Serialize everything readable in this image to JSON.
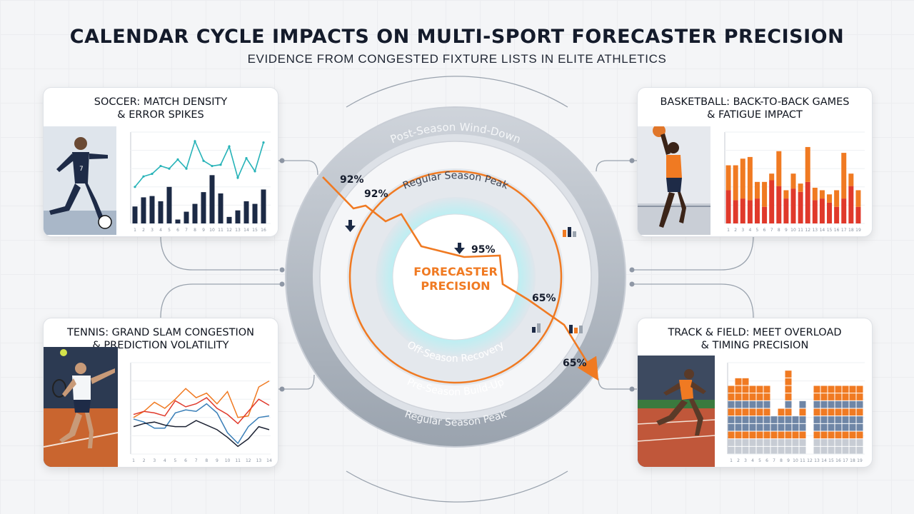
{
  "title": "CALENDAR CYCLE IMPACTS ON MULTI-SPORT FORECASTER PRECISION",
  "subtitle": "EVIDENCE FROM CONGESTED FIXTURE LISTS IN ELITE ATHLETICS",
  "center": {
    "line1": "FORECASTER",
    "line2": "PRECISION"
  },
  "rings": {
    "outer_top": "Post-Season Wind-Down",
    "mid_top": "Regular Season Peak",
    "inner_bottom": "Off-Season Recovery",
    "mid_bottom": "Pre-Season Build-Up",
    "outer_bottom": "Regular Season Peak"
  },
  "precision_labels": [
    "92%",
    "92%",
    "95%",
    "65%",
    "65%"
  ],
  "panels": {
    "soccer": {
      "title_line1": "SOCCER: MATCH DENSITY",
      "title_line2": "& ERROR SPIKES"
    },
    "basketball": {
      "title_line1": "BASKETBALL: BACK-TO-BACK GAMES",
      "title_line2": "& FATIGUE IMPACT"
    },
    "tennis": {
      "title_line1": "TENNIS: GRAND SLAM CONGESTION",
      "title_line2": "& PREDICTION VOLATILITY"
    },
    "track": {
      "title_line1": "TRACK & FIELD: MEET OVERLOAD",
      "title_line2": "& TIMING PRECISION"
    }
  },
  "colors": {
    "orange": "#f07a22",
    "navy": "#1c2a45",
    "teal": "#27b3b8",
    "red": "#e0392b",
    "slate": "#6f86a6",
    "gray_ring": "#b9bfc8"
  },
  "chart_data": [
    {
      "type": "bar",
      "panel": "soccer",
      "categories": [
        "1",
        "2",
        "3",
        "4",
        "5",
        "6",
        "7",
        "8",
        "9",
        "10",
        "11",
        "12",
        "13",
        "14",
        "15",
        "16"
      ],
      "series": [
        {
          "values": [
            13,
            20,
            21,
            17,
            28,
            3,
            9,
            15,
            24,
            37,
            23,
            5,
            10,
            17,
            15,
            26
          ]
        },
        {
          "values": [
            28,
            36,
            38,
            44,
            42,
            49,
            42,
            63,
            48,
            44,
            45,
            59,
            35,
            50,
            40,
            62
          ]
        }
      ],
      "ylim": [
        0,
        70
      ]
    },
    {
      "type": "bar",
      "panel": "basketball",
      "categories": [
        "1",
        "2",
        "3",
        "4",
        "5",
        "6",
        "7",
        "8",
        "9",
        "10",
        "11",
        "12",
        "13",
        "14",
        "15",
        "16",
        "17",
        "18",
        "19"
      ],
      "series": [
        {
          "values": [
            40,
            28,
            30,
            28,
            30,
            20,
            52,
            45,
            30,
            42,
            38,
            50,
            28,
            30,
            25,
            20,
            30,
            45,
            20
          ]
        },
        {
          "values": [
            30,
            42,
            48,
            52,
            20,
            30,
            8,
            42,
            10,
            18,
            10,
            42,
            15,
            10,
            10,
            20,
            55,
            15,
            20
          ]
        }
      ],
      "ylim": [
        0,
        110
      ]
    },
    {
      "type": "line",
      "panel": "tennis",
      "x": [
        "1",
        "2",
        "3",
        "4",
        "5",
        "6",
        "7",
        "8",
        "9",
        "10",
        "11",
        "12",
        "13",
        "14"
      ],
      "series": [
        {
          "values": [
            24,
            28,
            34,
            30,
            36,
            43,
            37,
            40,
            33,
            41,
            24,
            25,
            44,
            48
          ]
        },
        {
          "values": [
            26,
            28,
            27,
            25,
            35,
            31,
            33,
            37,
            30,
            26,
            20,
            28,
            36,
            32
          ]
        },
        {
          "values": [
            23,
            21,
            17,
            17,
            27,
            29,
            28,
            33,
            27,
            14,
            7,
            18,
            24,
            25
          ]
        },
        {
          "values": [
            18,
            20,
            21,
            19,
            18,
            18,
            22,
            19,
            16,
            11,
            5,
            10,
            18,
            16
          ]
        }
      ],
      "ylim": [
        0,
        60
      ]
    },
    {
      "type": "bar",
      "panel": "track",
      "categories": [
        "1",
        "2",
        "3",
        "4",
        "5",
        "6",
        "7",
        "8",
        "9",
        "10",
        "11",
        "12",
        "13",
        "14",
        "15",
        "16",
        "17",
        "18",
        "19"
      ],
      "values": [
        9,
        10,
        10,
        9,
        9,
        9,
        5,
        6,
        11,
        5,
        7,
        0,
        9,
        9,
        9,
        9,
        9,
        9,
        9
      ],
      "ylim": [
        0,
        12
      ]
    }
  ]
}
